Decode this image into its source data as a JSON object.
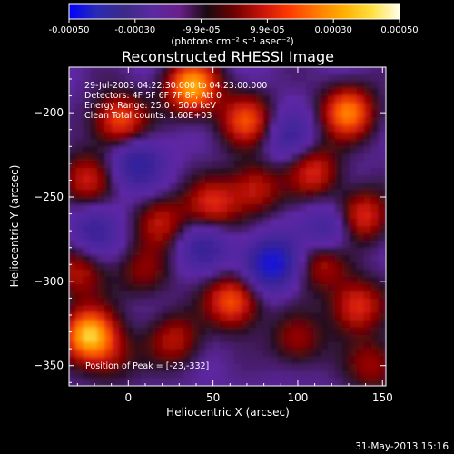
{
  "colorbar": {
    "ticks": [
      "-0.00050",
      "-0.00030",
      "-9.9e-05",
      "9.9e-05",
      "0.00030",
      "0.00050"
    ],
    "unit_label": "(photons cm⁻² s⁻¹ asec⁻²)",
    "range": [
      -0.0005,
      0.0005
    ],
    "colors": [
      "#0000ff",
      "#2a2ab4",
      "#3b2a86",
      "#5a2aa0",
      "#6a1f8c",
      "#1a0a10",
      "#6e0000",
      "#c8120a",
      "#ff3a00",
      "#ff7a00",
      "#ffb000",
      "#ffe040",
      "#ffffe8"
    ]
  },
  "chart_data": {
    "type": "heatmap",
    "title": "Reconstructed RHESSI Image",
    "xlabel": "Heliocentric X (arcsec)",
    "ylabel": "Heliocentric Y (arcsec)",
    "xlim": [
      -35,
      152
    ],
    "ylim": [
      -362,
      -173
    ],
    "x_ticks": [
      0,
      50,
      100,
      150
    ],
    "y_ticks": [
      -200,
      -250,
      -300,
      -350
    ],
    "info_lines": [
      "29-Jul-2003 04:22:30.000 to 04:23:00.000",
      "Detectors: 4F 5F 6F 7F 8F, Att 0",
      "Energy Range: 25.0 - 50.0 keV",
      "Clean     Total counts: 1.60E+03"
    ],
    "peak_label": "Position of Peak = [-23,-332]",
    "peak": [
      -23,
      -332
    ],
    "sources": [
      {
        "x": -23,
        "y": -332,
        "v": 1.0
      },
      {
        "x": 38,
        "y": -185,
        "v": 0.95
      },
      {
        "x": 130,
        "y": -200,
        "v": 0.8
      },
      {
        "x": -5,
        "y": -205,
        "v": 0.7
      },
      {
        "x": 62,
        "y": -312,
        "v": 0.72
      },
      {
        "x": 70,
        "y": -205,
        "v": 0.65
      },
      {
        "x": 138,
        "y": -262,
        "v": 0.62
      },
      {
        "x": 135,
        "y": -315,
        "v": 0.6
      },
      {
        "x": 50,
        "y": -255,
        "v": 0.55
      },
      {
        "x": 75,
        "y": -245,
        "v": 0.5
      },
      {
        "x": -25,
        "y": -240,
        "v": 0.5
      },
      {
        "x": 20,
        "y": -265,
        "v": 0.45
      },
      {
        "x": -30,
        "y": -295,
        "v": 0.45
      },
      {
        "x": 110,
        "y": -235,
        "v": 0.55
      },
      {
        "x": 115,
        "y": -290,
        "v": 0.45
      },
      {
        "x": 28,
        "y": -335,
        "v": 0.45
      },
      {
        "x": 100,
        "y": -335,
        "v": 0.4
      },
      {
        "x": 10,
        "y": -295,
        "v": 0.35
      },
      {
        "x": -10,
        "y": -345,
        "v": 0.3
      },
      {
        "x": 145,
        "y": -350,
        "v": 0.4
      },
      {
        "x": 85,
        "y": -290,
        "v": -0.8
      },
      {
        "x": 5,
        "y": -230,
        "v": -0.5
      },
      {
        "x": 120,
        "y": -270,
        "v": -0.45
      },
      {
        "x": 45,
        "y": -280,
        "v": -0.4
      },
      {
        "x": 95,
        "y": -215,
        "v": -0.35
      },
      {
        "x": -20,
        "y": -270,
        "v": -0.35
      }
    ]
  },
  "footer": {
    "date": "31-May-2013 15:16"
  }
}
